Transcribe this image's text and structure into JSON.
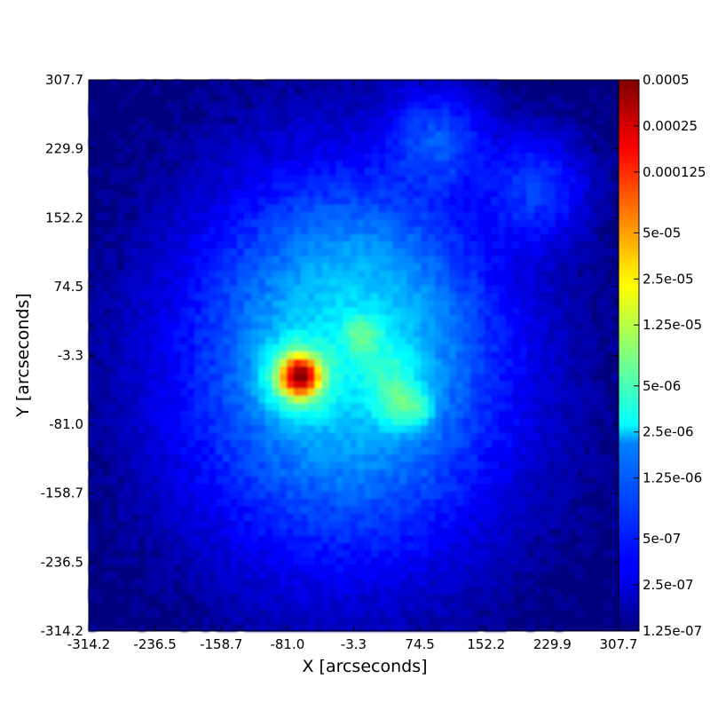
{
  "chart_data": {
    "type": "heatmap",
    "title": "",
    "xlabel": "X [arcseconds]",
    "ylabel": "Y [arcseconds]",
    "xlim": [
      -314.2,
      307.7
    ],
    "ylim": [
      -314.2,
      307.7
    ],
    "x_ticks": [
      "-314.2",
      "-236.5",
      "-158.7",
      "-81.0",
      "-3.3",
      "74.5",
      "152.2",
      "229.9",
      "307.7"
    ],
    "y_ticks": [
      "307.7",
      "229.9",
      "152.2",
      "74.5",
      "-3.3",
      "-81.0",
      "-158.7",
      "-236.5",
      "-314.2"
    ],
    "colorbar": {
      "scale": "log",
      "range": [
        1.25e-07,
        0.0005
      ],
      "colormap": "jet",
      "tick_values": [
        0.0005,
        0.00025,
        0.000125,
        5e-05,
        2.5e-05,
        1.25e-05,
        5e-06,
        2.5e-06,
        1.25e-06,
        5e-07,
        2.5e-07,
        1.25e-07
      ],
      "tick_labels": [
        "0.0005",
        "0.00025",
        "0.000125",
        "5e-05",
        "2.5e-05",
        "1.25e-05",
        "5e-06",
        "2.5e-06",
        "1.25e-06",
        "5e-07",
        "2.5e-07",
        "1.25e-07"
      ]
    },
    "background_value": 1.25e-07,
    "features": [
      {
        "x": -66,
        "y": -27,
        "peak": 0.0005,
        "radius": 9
      },
      {
        "x": -66,
        "y": -27,
        "peak": 1e-05,
        "radius": 22
      },
      {
        "x": 6,
        "y": 19,
        "peak": 4e-06,
        "radius": 14
      },
      {
        "x": 48,
        "y": -56,
        "peak": 4e-06,
        "radius": 16
      },
      {
        "x": 70,
        "y": -62,
        "peak": 3e-06,
        "radius": 12
      },
      {
        "x": 38,
        "y": -22,
        "peak": 2e-06,
        "radius": 22
      },
      {
        "x": 95,
        "y": 240,
        "peak": 5e-07,
        "radius": 35
      },
      {
        "x": 210,
        "y": 185,
        "peak": 4e-07,
        "radius": 38
      }
    ]
  }
}
